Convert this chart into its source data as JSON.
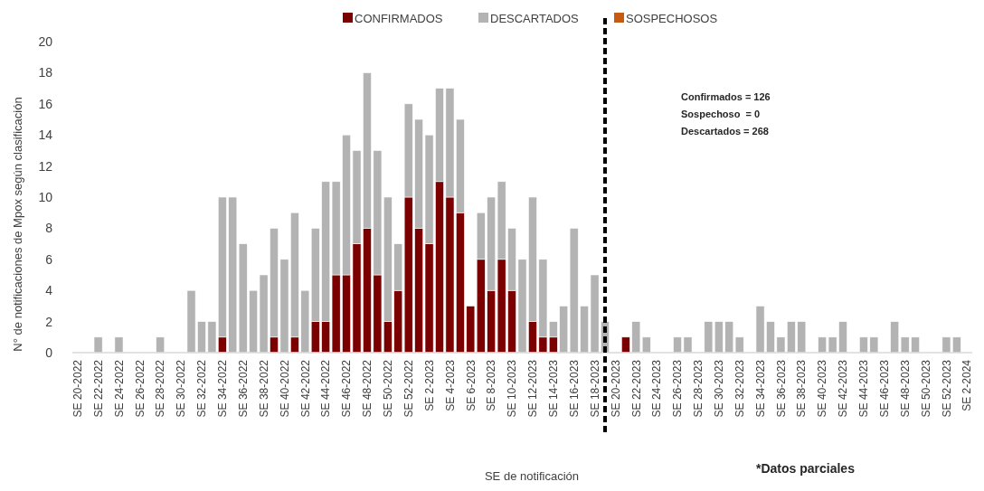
{
  "chart_data": {
    "type": "bar",
    "stacked": true,
    "ylabel": "N° de notificaciones de Mpox según clasificación",
    "xlabel": "SE de notificación",
    "ylim": [
      0,
      20
    ],
    "yticks": [
      0,
      2,
      4,
      6,
      8,
      10,
      12,
      14,
      16,
      18,
      20
    ],
    "grid": false,
    "legend": "top",
    "categories": [
      "SE 20-2022",
      null,
      "SE 22-2022",
      null,
      "SE 24-2022",
      null,
      "SE 26-2022",
      null,
      "SE 28-2022",
      null,
      "SE 30-2022",
      null,
      "SE 32-2022",
      null,
      "SE 34-2022",
      null,
      "SE 36-2022",
      null,
      "SE 38-2022",
      null,
      "SE 40-2022",
      null,
      "SE 42-2022",
      null,
      "SE 44-2022",
      null,
      "SE 46-2022",
      null,
      "SE 48-2022",
      null,
      "SE 50-2022",
      null,
      "SE 52-2022",
      null,
      "SE 2-2023",
      null,
      "SE 4-2023",
      null,
      "SE 6-2023",
      null,
      "SE 8-2023",
      null,
      "SE 10-2023",
      null,
      "SE 12-2023",
      null,
      "SE 14-2023",
      null,
      "SE 16-2023",
      null,
      "SE 18-2023",
      null,
      "SE 20-2023",
      null,
      "SE 22-2023",
      null,
      "SE 24-2023",
      null,
      "SE 26-2023",
      null,
      "SE 28-2023",
      null,
      "SE 30-2023",
      null,
      "SE 32-2023",
      null,
      "SE 34-2023",
      null,
      "SE 36-2023",
      null,
      "SE 38-2023",
      null,
      "SE 40-2023",
      null,
      "SE 42-2023",
      null,
      "SE 44-2023",
      null,
      "SE 46-2023",
      null,
      "SE 48-2023",
      null,
      "SE 50-2023",
      null,
      "SE 52-2023",
      null,
      "SE 2-2024"
    ],
    "series": [
      {
        "name": "CONFIRMADOS",
        "color": "#7b0000",
        "values": [
          0,
          0,
          0,
          0,
          0,
          0,
          0,
          0,
          0,
          0,
          0,
          0,
          0,
          0,
          1,
          0,
          0,
          0,
          0,
          1,
          0,
          1,
          0,
          2,
          2,
          5,
          5,
          7,
          8,
          5,
          2,
          4,
          10,
          8,
          7,
          11,
          10,
          9,
          3,
          6,
          4,
          6,
          4,
          0,
          2,
          1,
          1,
          0,
          0,
          0,
          0,
          0,
          0,
          1,
          0,
          0,
          0,
          0,
          0,
          0,
          0,
          0,
          0,
          0,
          0,
          0,
          0,
          0,
          0,
          0,
          0,
          0,
          0,
          0,
          0,
          0,
          0,
          0,
          0,
          0,
          0,
          0,
          0,
          0,
          0,
          0,
          0
        ]
      },
      {
        "name": "DESCARTADOS",
        "color": "#b3b3b3",
        "values": [
          0,
          0,
          1,
          0,
          1,
          0,
          0,
          0,
          1,
          0,
          0,
          4,
          2,
          2,
          9,
          10,
          7,
          4,
          5,
          7,
          6,
          8,
          4,
          6,
          9,
          6,
          9,
          6,
          10,
          8,
          8,
          3,
          6,
          7,
          7,
          6,
          7,
          6,
          0,
          3,
          6,
          5,
          4,
          6,
          8,
          5,
          1,
          3,
          8,
          3,
          5,
          2,
          0,
          0,
          2,
          1,
          0,
          0,
          1,
          1,
          0,
          2,
          2,
          2,
          1,
          0,
          3,
          2,
          1,
          2,
          2,
          0,
          1,
          1,
          2,
          0,
          1,
          1,
          0,
          2,
          1,
          1,
          0,
          0,
          1,
          1,
          0
        ]
      },
      {
        "name": "SOSPECHOSOS",
        "color": "#c55a11",
        "values": [
          0,
          0,
          0,
          0,
          0,
          0,
          0,
          0,
          0,
          0,
          0,
          0,
          0,
          0,
          0,
          0,
          0,
          0,
          0,
          0,
          0,
          0,
          0,
          0,
          0,
          0,
          0,
          0,
          0,
          0,
          0,
          0,
          0,
          0,
          0,
          0,
          0,
          0,
          0,
          0,
          0,
          0,
          0,
          0,
          0,
          0,
          0,
          0,
          0,
          0,
          0,
          0,
          0,
          0,
          0,
          0,
          0,
          0,
          0,
          0,
          0,
          0,
          0,
          0,
          0,
          0,
          0,
          0,
          0,
          0,
          0,
          0,
          0,
          0,
          0,
          0,
          0,
          0,
          0,
          0,
          0,
          0,
          0,
          0,
          0,
          0,
          0
        ]
      }
    ],
    "annotations": [
      "Confirmados = 126",
      "Sospechoso  = 0",
      "Descartados = 268",
      "*Datos parciales"
    ]
  }
}
